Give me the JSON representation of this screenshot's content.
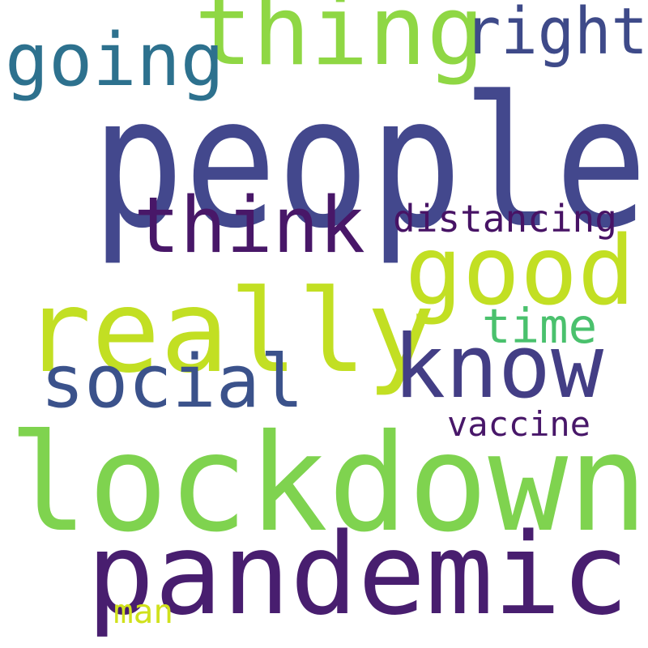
{
  "words": {
    "people": {
      "text": "people",
      "color": "#43488d"
    },
    "lockdown": {
      "text": "lockdown",
      "color": "#7fd34f"
    },
    "really": {
      "text": "really",
      "color": "#c2df23"
    },
    "pandemic": {
      "text": "pandemic",
      "color": "#481e6f"
    },
    "thing": {
      "text": "thing",
      "color": "#8fd744"
    },
    "good": {
      "text": "good",
      "color": "#c2df23"
    },
    "know": {
      "text": "know",
      "color": "#433e85"
    },
    "think": {
      "text": "think",
      "color": "#481768"
    },
    "social": {
      "text": "social",
      "color": "#3b528b"
    },
    "going": {
      "text": "going",
      "color": "#2d718e"
    },
    "right": {
      "text": "right",
      "color": "#3e4a89"
    },
    "time": {
      "text": "time",
      "color": "#4ac16d"
    },
    "distancing": {
      "text": "distancing",
      "color": "#471365"
    },
    "vaccine": {
      "text": "vaccine",
      "color": "#481769"
    },
    "man": {
      "text": "man",
      "color": "#d0e11c"
    }
  }
}
